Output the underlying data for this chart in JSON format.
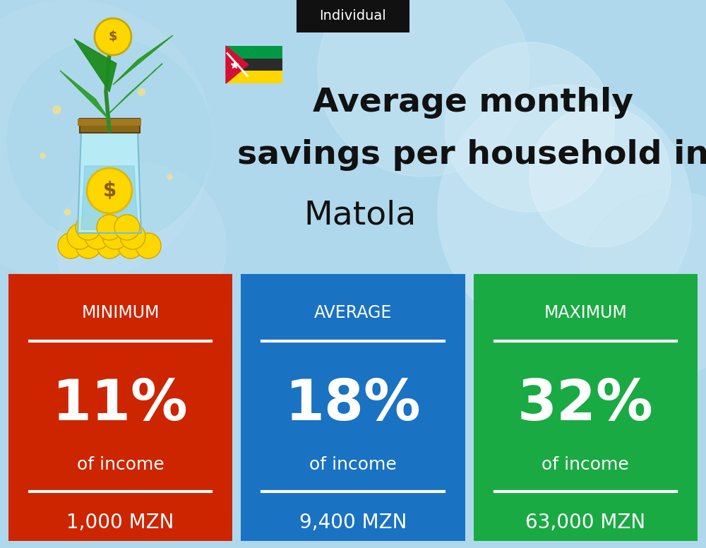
{
  "title_line1": "Average monthly",
  "title_line2": "savings per household in",
  "title_line3": "Matola",
  "badge_text": "Individual",
  "bg_color": "#add8e6",
  "cards": [
    {
      "label": "MINIMUM",
      "percent": "11%",
      "sub": "of income",
      "amount": "1,000 MZN",
      "color": "#cc2500"
    },
    {
      "label": "AVERAGE",
      "percent": "18%",
      "sub": "of income",
      "amount": "9,400 MZN",
      "color": "#1a72c2"
    },
    {
      "label": "MAXIMUM",
      "percent": "32%",
      "sub": "of income",
      "amount": "63,000 MZN",
      "color": "#1aaa44"
    }
  ],
  "flag_colors": {
    "green": "#009a44",
    "black": "#2b2b2b",
    "yellow": "#ffd700",
    "red": "#d21034",
    "white": "#ffffff"
  },
  "text_color": "#ffffff",
  "badge_bg": "#111111",
  "badge_text_color": "#ffffff",
  "title_color": "#111111"
}
